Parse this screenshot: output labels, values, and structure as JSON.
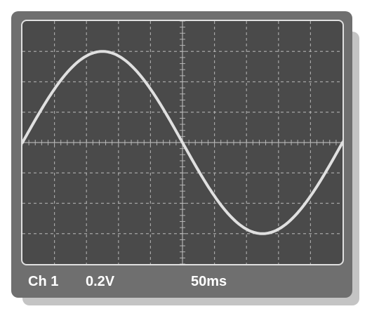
{
  "readout": {
    "channel": "Ch 1",
    "volts_per_div": "0.2V",
    "time_per_div": "50ms"
  },
  "colors": {
    "body": "#6f6f6f",
    "screen": "#4a4a4a",
    "trace": "#e0e0e0",
    "grid": "#bdbdbd"
  },
  "grid": {
    "h_divisions": 10,
    "v_divisions": 8
  },
  "chart_data": {
    "type": "line",
    "waveform": "sine",
    "amplitude_divisions": 3,
    "period_divisions": 10,
    "phase_degrees": 0,
    "x_range_divisions": [
      0,
      10
    ],
    "y_range_divisions": [
      -4,
      4
    ]
  }
}
